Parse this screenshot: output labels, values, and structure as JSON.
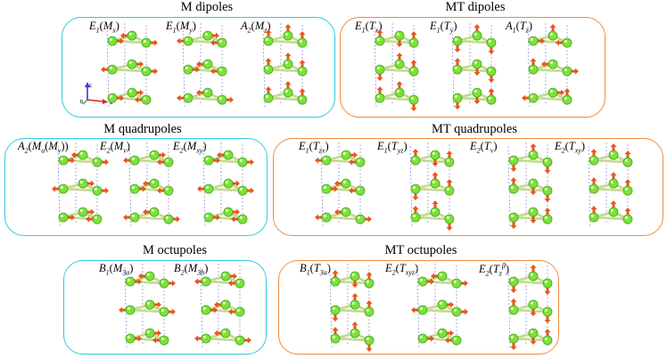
{
  "colors": {
    "m_frame": "#33c9e0",
    "mt_frame": "#ef8c3e",
    "atom": "#7fe03a",
    "atom_dark": "#3fa81a",
    "arrow": "#e8561a",
    "bond": "#cfe3a0",
    "dash": "#7777c8"
  },
  "panels": {
    "m_dipoles": {
      "title": "M dipoles",
      "labels": [
        "E1(Mx)",
        "E1(My)",
        "A2(Mz)"
      ]
    },
    "mt_dipoles": {
      "title": "MT dipoles",
      "labels": [
        "E1(Tx)",
        "E1(Ty)",
        "A1(Tz)"
      ]
    },
    "m_quadrupoles": {
      "title": "M quadrupoles",
      "labels": [
        "A2(Mu(Mv))",
        "E2(Mv)",
        "E2(Mxy)"
      ]
    },
    "mt_quadrupoles": {
      "title": "MT quadrupoles",
      "labels": [
        "E1(Tzx)",
        "E1(Tyz)",
        "E2(Tv)",
        "E2(Txy)"
      ]
    },
    "m_octupoles": {
      "title": "M octupoles",
      "labels": [
        "B1(M3a)",
        "B2(M3b)"
      ]
    },
    "mt_octupoles": {
      "title": "MT octupoles",
      "labels": [
        "B1(T3a)",
        "E2(Txyz)",
        "E2(Tzβ)"
      ]
    }
  },
  "axes_icon": {
    "x": "a",
    "y": "b",
    "z": "c"
  }
}
